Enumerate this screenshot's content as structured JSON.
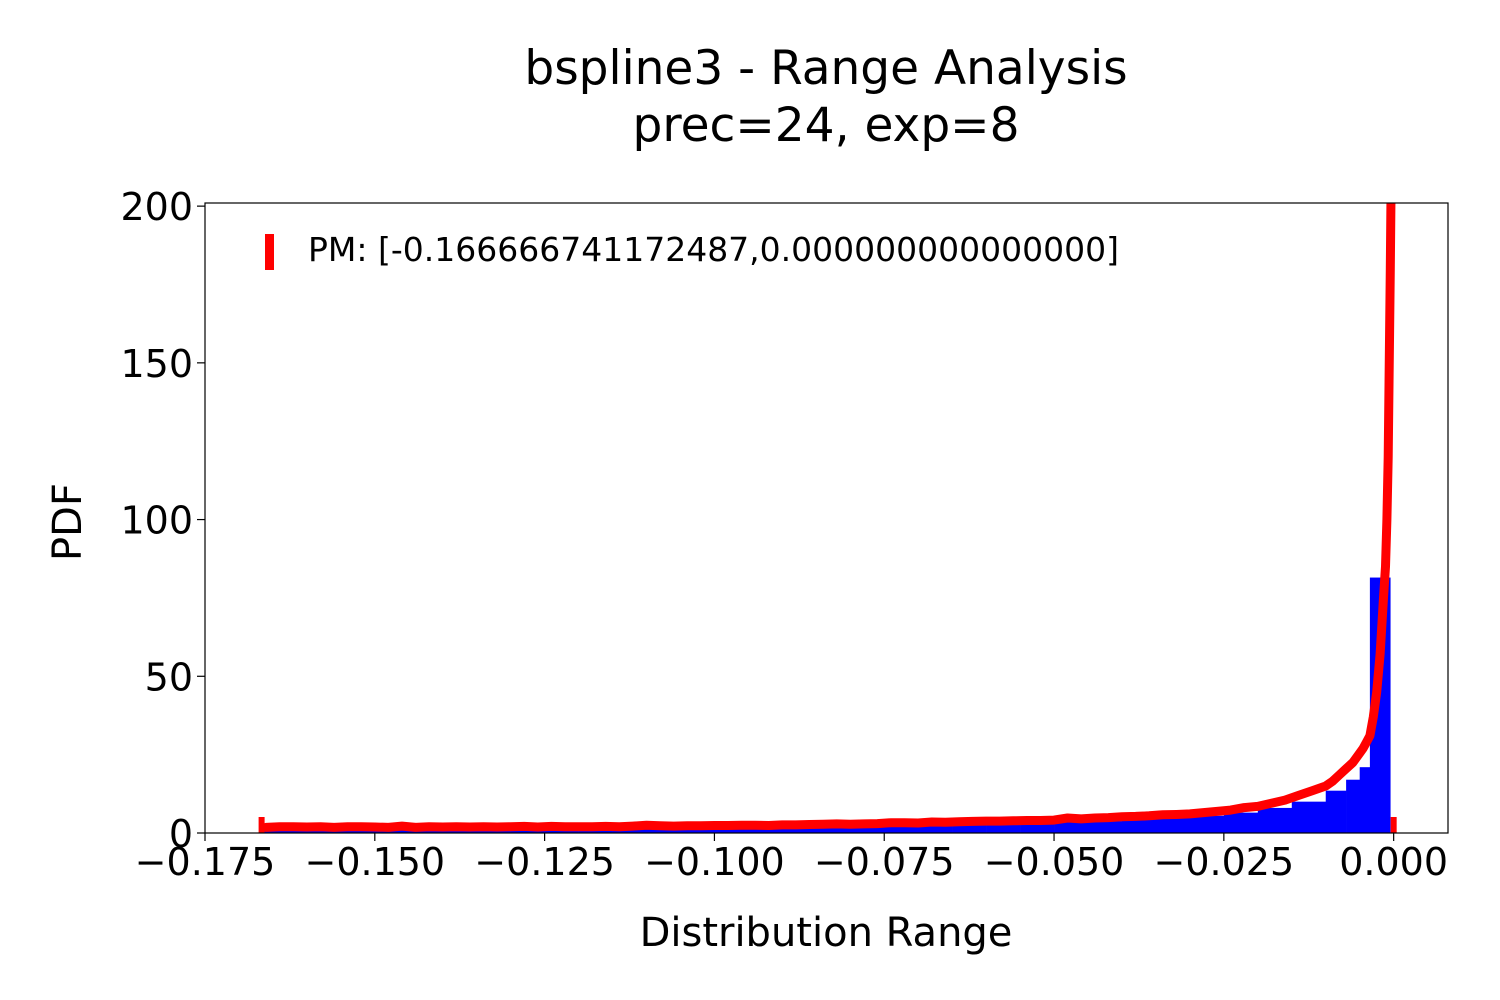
{
  "chart_data": {
    "type": "bar",
    "title": "bspline3 - Range Analysis",
    "subtitle": "prec=24, exp=8",
    "xlabel": "Distribution Range",
    "ylabel": "PDF",
    "xlim": [
      -0.175,
      0.008
    ],
    "ylim": [
      0,
      201
    ],
    "x_ticks": [
      -0.175,
      -0.15,
      -0.125,
      -0.1,
      -0.075,
      -0.05,
      -0.025,
      0.0
    ],
    "x_tick_labels": [
      "−0.175",
      "−0.150",
      "−0.125",
      "−0.100",
      "−0.075",
      "−0.050",
      "−0.025",
      "0.000"
    ],
    "y_ticks": [
      0,
      50,
      100,
      150,
      200
    ],
    "y_tick_labels": [
      "0",
      "50",
      "100",
      "150",
      "200"
    ],
    "grid": false,
    "legend_position": "top-left",
    "colors": {
      "histogram": "#0000ff",
      "pdf_line": "#ff0000",
      "range_markers": "#ff0000"
    },
    "series": [
      {
        "kind": "histogram",
        "bins": [
          [
            -0.1667,
            -0.165,
            1.5
          ],
          [
            -0.165,
            -0.16,
            1.5
          ],
          [
            -0.16,
            -0.155,
            1.5
          ],
          [
            -0.155,
            -0.15,
            1.5
          ],
          [
            -0.15,
            -0.145,
            1.5
          ],
          [
            -0.145,
            -0.14,
            1.5
          ],
          [
            -0.14,
            -0.135,
            1.5
          ],
          [
            -0.135,
            -0.13,
            1.5
          ],
          [
            -0.13,
            -0.125,
            1.5
          ],
          [
            -0.125,
            -0.12,
            1.5
          ],
          [
            -0.12,
            -0.115,
            1.5
          ],
          [
            -0.115,
            -0.11,
            1.7
          ],
          [
            -0.11,
            -0.105,
            1.7
          ],
          [
            -0.105,
            -0.1,
            1.8
          ],
          [
            -0.1,
            -0.095,
            1.8
          ],
          [
            -0.095,
            -0.09,
            1.9
          ],
          [
            -0.09,
            -0.085,
            2.0
          ],
          [
            -0.085,
            -0.08,
            2.1
          ],
          [
            -0.08,
            -0.075,
            2.2
          ],
          [
            -0.075,
            -0.07,
            2.3
          ],
          [
            -0.07,
            -0.065,
            2.5
          ],
          [
            -0.065,
            -0.06,
            2.7
          ],
          [
            -0.06,
            -0.055,
            3.0
          ],
          [
            -0.055,
            -0.05,
            3.2
          ],
          [
            -0.05,
            -0.045,
            3.5
          ],
          [
            -0.045,
            -0.04,
            3.8
          ],
          [
            -0.04,
            -0.035,
            4.3
          ],
          [
            -0.035,
            -0.03,
            4.8
          ],
          [
            -0.03,
            -0.025,
            5.5
          ],
          [
            -0.025,
            -0.02,
            6.5
          ],
          [
            -0.02,
            -0.015,
            8.0
          ],
          [
            -0.015,
            -0.01,
            10.0
          ],
          [
            -0.01,
            -0.007,
            13.5
          ],
          [
            -0.007,
            -0.005,
            17.0
          ],
          [
            -0.005,
            -0.0035,
            21.0
          ],
          [
            -0.0035,
            -0.0005,
            81.5
          ]
        ]
      },
      {
        "kind": "line",
        "x": [
          -0.166,
          -0.164,
          -0.162,
          -0.16,
          -0.158,
          -0.156,
          -0.154,
          -0.152,
          -0.15,
          -0.148,
          -0.146,
          -0.144,
          -0.142,
          -0.14,
          -0.138,
          -0.136,
          -0.134,
          -0.132,
          -0.13,
          -0.128,
          -0.126,
          -0.124,
          -0.122,
          -0.12,
          -0.118,
          -0.116,
          -0.114,
          -0.112,
          -0.11,
          -0.108,
          -0.106,
          -0.104,
          -0.102,
          -0.1,
          -0.098,
          -0.096,
          -0.094,
          -0.092,
          -0.09,
          -0.088,
          -0.086,
          -0.084,
          -0.082,
          -0.08,
          -0.078,
          -0.076,
          -0.074,
          -0.072,
          -0.07,
          -0.068,
          -0.066,
          -0.064,
          -0.062,
          -0.06,
          -0.058,
          -0.056,
          -0.054,
          -0.052,
          -0.05,
          -0.048,
          -0.046,
          -0.044,
          -0.042,
          -0.04,
          -0.038,
          -0.036,
          -0.034,
          -0.032,
          -0.03,
          -0.028,
          -0.026,
          -0.024,
          -0.022,
          -0.02,
          -0.018,
          -0.016,
          -0.014,
          -0.012,
          -0.01,
          -0.009,
          -0.008,
          -0.007,
          -0.006,
          -0.005,
          -0.0045,
          -0.004,
          -0.0035,
          -0.003,
          -0.0025,
          -0.002,
          -0.0015,
          -0.0012,
          -0.001,
          -0.0008,
          -0.0007,
          -0.0006,
          -0.0005,
          -0.0004,
          -0.0003,
          -0.0002
        ],
        "y": [
          1.8,
          2.0,
          2.0,
          1.9,
          2.0,
          1.8,
          2.0,
          2.0,
          1.9,
          1.8,
          2.2,
          1.8,
          2.0,
          1.9,
          2.0,
          1.9,
          2.0,
          1.9,
          2.0,
          2.1,
          1.9,
          2.1,
          2.0,
          2.0,
          2.0,
          2.1,
          2.0,
          2.2,
          2.5,
          2.3,
          2.2,
          2.3,
          2.3,
          2.4,
          2.4,
          2.5,
          2.5,
          2.4,
          2.6,
          2.6,
          2.7,
          2.8,
          2.9,
          2.8,
          2.9,
          3.0,
          3.3,
          3.3,
          3.2,
          3.5,
          3.4,
          3.6,
          3.7,
          3.8,
          3.8,
          3.9,
          4.0,
          4.0,
          4.1,
          4.8,
          4.5,
          4.8,
          4.9,
          5.2,
          5.3,
          5.5,
          5.8,
          5.9,
          6.1,
          6.5,
          6.9,
          7.3,
          8.1,
          8.5,
          9.5,
          10.5,
          12.0,
          13.5,
          15.0,
          16.5,
          18.5,
          20.5,
          22.5,
          25.5,
          27.0,
          29.0,
          31.0,
          37.0,
          45.0,
          57.0,
          75.0,
          85.0,
          100.0,
          120.0,
          140.0,
          160.0,
          180.0,
          200.0,
          215.0,
          230.0
        ]
      }
    ],
    "range_markers": [
      -0.16666674,
      0.0
    ],
    "legend": [
      "PM: [-0.166666741172487,0.000000000000000]"
    ]
  }
}
